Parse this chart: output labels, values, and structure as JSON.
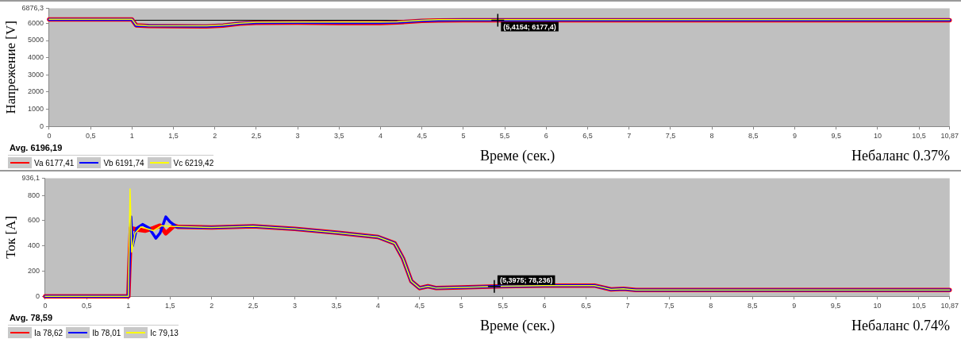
{
  "chart_data": [
    {
      "type": "line",
      "ylabel": "Напрежение [V]",
      "xlabel": "Време (сек.)",
      "xlim": [
        0,
        10.87
      ],
      "ylim": [
        0,
        6876.3
      ],
      "xticks": [
        0,
        {
          "value": 0.5,
          "label": "0,5"
        },
        1,
        {
          "value": 1.5,
          "label": "1,5"
        },
        2,
        {
          "value": 2.5,
          "label": "2,5"
        },
        3,
        {
          "value": 3.5,
          "label": "3,5"
        },
        4,
        {
          "value": 4.5,
          "label": "4,5"
        },
        5,
        {
          "value": 5.5,
          "label": "5,5"
        },
        6,
        {
          "value": 6.5,
          "label": "6,5"
        },
        7,
        {
          "value": 7.5,
          "label": "7,5"
        },
        8,
        {
          "value": 8.5,
          "label": "8,5"
        },
        9,
        {
          "value": 9.5,
          "label": "9,5"
        },
        10,
        {
          "value": 10.5,
          "label": "10,5"
        },
        {
          "value": 10.87,
          "label": "10,87"
        }
      ],
      "yticks": [
        0,
        1000,
        2000,
        3000,
        4000,
        5000,
        6000,
        {
          "value": 6876.3,
          "label": "6876,3"
        }
      ],
      "grid": false,
      "legend": "bottom left",
      "marker": "none",
      "series": [
        {
          "name": "Va 6177,41",
          "color": "#ff0000",
          "x": [
            0,
            1.0,
            1.05,
            1.2,
            1.9,
            2.1,
            2.3,
            2.5,
            3.0,
            3.5,
            4.0,
            4.2,
            4.5,
            4.7,
            5.0,
            6.6,
            10.87
          ],
          "values": [
            6220,
            6220,
            5880,
            5840,
            5820,
            5870,
            5980,
            6030,
            6040,
            6020,
            6020,
            6050,
            6140,
            6170,
            6180,
            6180,
            6180
          ]
        },
        {
          "name": "Vb 6191,74",
          "color": "#0000ff",
          "x": [
            0,
            1.0,
            1.05,
            1.2,
            1.9,
            2.1,
            2.3,
            2.5,
            3.0,
            3.5,
            4.0,
            4.2,
            4.5,
            4.7,
            5.0,
            6.6,
            10.87
          ],
          "values": [
            6230,
            6230,
            5870,
            5850,
            5830,
            5880,
            5990,
            6040,
            6050,
            6040,
            6040,
            6060,
            6150,
            6180,
            6190,
            6190,
            6190
          ]
        },
        {
          "name": "Vc 6219,42",
          "color": "#ffff00",
          "x": [
            0,
            1.0,
            1.05,
            1.2,
            1.9,
            2.1,
            2.3,
            2.5,
            3.0,
            3.5,
            4.0,
            4.2,
            4.5,
            4.7,
            5.0,
            6.6,
            10.87
          ],
          "values": [
            6240,
            6240,
            5900,
            5860,
            5850,
            5900,
            6010,
            6060,
            6080,
            6080,
            6070,
            6090,
            6180,
            6210,
            6210,
            6210,
            6210
          ]
        }
      ],
      "ref_lines": [
        {
          "axis": "y",
          "value": 6177.4,
          "color": "#000000"
        }
      ],
      "annotations": [
        "Avg. 6196,19",
        "Небаланс 0.37%",
        {
          "text": "(5,4154; 6177,4)",
          "x": 5.4154,
          "y": 6177.4
        }
      ]
    },
    {
      "type": "line",
      "ylabel": "Ток [A]",
      "xlabel": "Време (сек.)",
      "xlim": [
        0,
        10.87
      ],
      "ylim": [
        0,
        936.1
      ],
      "xticks": [
        0,
        {
          "value": 0.5,
          "label": "0,5"
        },
        1,
        {
          "value": 1.5,
          "label": "1,5"
        },
        2,
        {
          "value": 2.5,
          "label": "2,5"
        },
        3,
        {
          "value": 3.5,
          "label": "3,5"
        },
        4,
        {
          "value": 4.5,
          "label": "4,5"
        },
        5,
        {
          "value": 5.5,
          "label": "5,5"
        },
        6,
        {
          "value": 6.5,
          "label": "6,5"
        },
        7,
        {
          "value": 7.5,
          "label": "7,5"
        },
        8,
        {
          "value": 8.5,
          "label": "8,5"
        },
        9,
        {
          "value": 9.5,
          "label": "9,5"
        },
        10,
        {
          "value": 10.5,
          "label": "10,5"
        },
        {
          "value": 10.87,
          "label": "10,87"
        }
      ],
      "yticks": [
        0,
        200,
        400,
        600,
        800,
        {
          "value": 936.1,
          "label": "936,1"
        }
      ],
      "grid": false,
      "legend": "bottom left",
      "marker": "none",
      "series": [
        {
          "name": "Ia 78,62",
          "color": "#ff0000",
          "x": [
            0,
            1.0,
            1.01,
            1.03,
            1.1,
            1.2,
            1.3,
            1.38,
            1.45,
            1.55,
            1.6,
            2.0,
            2.5,
            3.0,
            3.5,
            4.0,
            4.2,
            4.3,
            4.4,
            4.5,
            4.6,
            4.7,
            5.0,
            5.5,
            6.0,
            6.6,
            6.8,
            6.95,
            7.1,
            10.87
          ],
          "values": [
            0,
            0,
            200,
            540,
            530,
            520,
            540,
            560,
            500,
            560,
            550,
            545,
            555,
            535,
            505,
            470,
            420,
            300,
            120,
            65,
            80,
            65,
            70,
            80,
            85,
            85,
            55,
            60,
            50,
            50
          ]
        },
        {
          "name": "Ib 78,01",
          "color": "#0000ff",
          "x": [
            0,
            1.0,
            1.03,
            1.05,
            1.1,
            1.17,
            1.25,
            1.33,
            1.38,
            1.45,
            1.5,
            1.58,
            2.0,
            2.5,
            3.0,
            3.5,
            4.0,
            4.2,
            4.3,
            4.4,
            4.5,
            4.6,
            4.7,
            5.0,
            5.5,
            6.0,
            6.6,
            6.8,
            6.95,
            7.1,
            10.87
          ],
          "values": [
            0,
            0,
            630,
            400,
            540,
            570,
            540,
            460,
            500,
            630,
            590,
            550,
            545,
            555,
            535,
            505,
            470,
            420,
            300,
            120,
            65,
            80,
            65,
            70,
            80,
            85,
            85,
            55,
            60,
            50,
            50
          ]
        },
        {
          "name": "Ic 79,13",
          "color": "#ffff00",
          "x": [
            0,
            1.0,
            1.02,
            1.04,
            1.08,
            1.15,
            1.3,
            1.4,
            1.5,
            2.0,
            2.5,
            3.0,
            3.5,
            4.0,
            4.2,
            4.3,
            4.4,
            4.5,
            4.6,
            4.7,
            5.0,
            5.5,
            6.0,
            6.6,
            6.8,
            6.95,
            7.1,
            10.87
          ],
          "values": [
            0,
            0,
            850,
            350,
            500,
            550,
            520,
            560,
            555,
            545,
            555,
            535,
            505,
            470,
            420,
            300,
            120,
            65,
            80,
            65,
            70,
            80,
            85,
            85,
            55,
            60,
            50,
            50
          ]
        }
      ],
      "annotations": [
        "Avg. 78,59",
        "Небаланс 0.74%",
        {
          "text": "(5,3975; 78,236)",
          "x": 5.3975,
          "y": 78.236
        }
      ]
    }
  ]
}
